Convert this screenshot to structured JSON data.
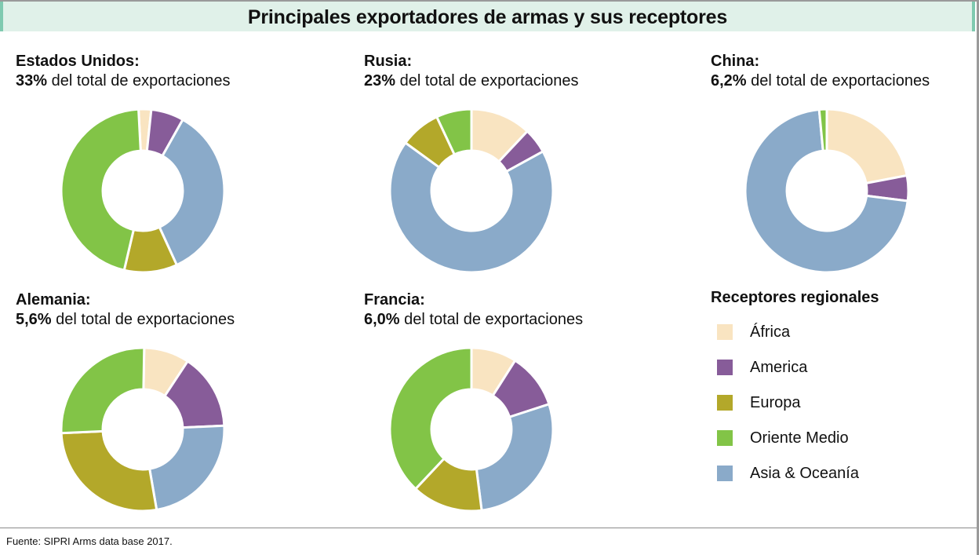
{
  "title": "Principales exportadores de armas y sus receptores",
  "source": "Fuente: SIPRI Arms data base 2017.",
  "legend": {
    "title": "Receptores regionales",
    "items": [
      {
        "label": "África",
        "color": "#f9e4c1"
      },
      {
        "label": "America",
        "color": "#875c99"
      },
      {
        "label": "Europa",
        "color": "#b3a82a"
      },
      {
        "label": "Oriente Medio",
        "color": "#82c447"
      },
      {
        "label": "Asia & Oceanía",
        "color": "#8aaac9"
      }
    ]
  },
  "panels": [
    {
      "country": "Estados Unidos:",
      "share": "33%",
      "share_text": " del total de exportaciones"
    },
    {
      "country": "Rusia:",
      "share": "23%",
      "share_text": " del total de exportaciones"
    },
    {
      "country": "China:",
      "share": "6,2%",
      "share_text": " del total de exportaciones"
    },
    {
      "country": "Alemania:",
      "share": "5,6%",
      "share_text": " del total de exportaciones"
    },
    {
      "country": "Francia:",
      "share": "6,0%",
      "share_text": " del total de exportaciones"
    }
  ],
  "chart_data": [
    {
      "type": "pie",
      "title": "Estados Unidos",
      "start_angle_deg": -3,
      "categories": [
        "África",
        "America",
        "Asia & Oceanía",
        "Europa",
        "Oriente Medio"
      ],
      "values": [
        2.5,
        6.5,
        35,
        10.5,
        45.5
      ]
    },
    {
      "type": "pie",
      "title": "Rusia",
      "start_angle_deg": 0,
      "categories": [
        "África",
        "America",
        "Asia & Oceanía",
        "Europa",
        "Oriente Medio"
      ],
      "values": [
        12,
        5,
        68,
        8,
        7
      ]
    },
    {
      "type": "pie",
      "title": "China",
      "start_angle_deg": 0,
      "categories": [
        "África",
        "America",
        "Asia & Oceanía",
        "Europa",
        "Oriente Medio"
      ],
      "values": [
        22,
        5,
        71.5,
        0,
        1.5
      ]
    },
    {
      "type": "pie",
      "title": "Alemania",
      "start_angle_deg": 1,
      "categories": [
        "África",
        "America",
        "Asia & Oceanía",
        "Europa",
        "Oriente Medio"
      ],
      "values": [
        9,
        15,
        23,
        27,
        26
      ]
    },
    {
      "type": "pie",
      "title": "Francia",
      "start_angle_deg": 0,
      "categories": [
        "África",
        "America",
        "Asia & Oceanía",
        "Europa",
        "Oriente Medio"
      ],
      "values": [
        9,
        11,
        28,
        14,
        38
      ]
    }
  ]
}
